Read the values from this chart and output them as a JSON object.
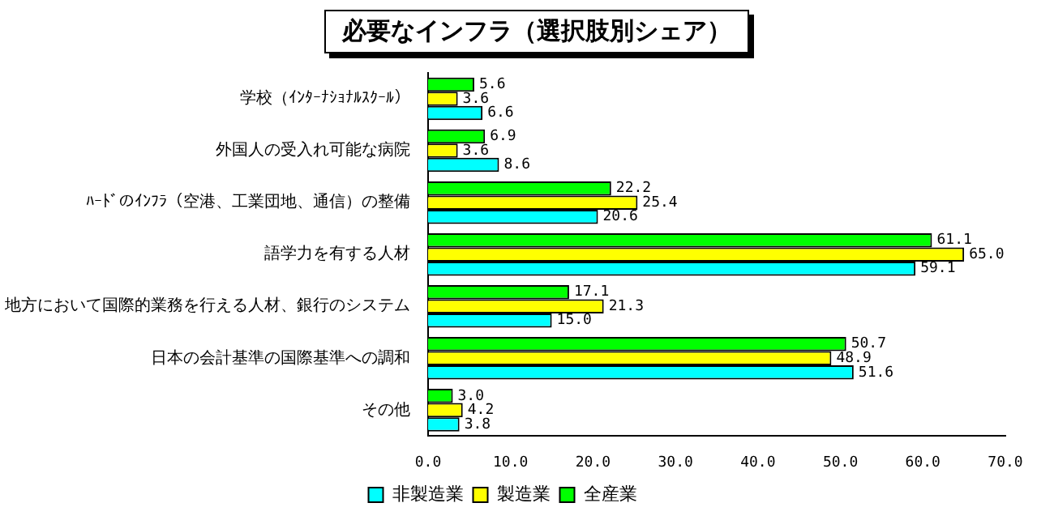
{
  "chart_data": {
    "type": "bar",
    "orientation": "horizontal",
    "title": "必要なインフラ（選択肢別シェア）",
    "categories": [
      "学校（ｲﾝﾀｰﾅｼｮﾅﾙｽｸｰﾙ）",
      "外国人の受入れ可能な病院",
      "ﾊｰﾄﾞのｲﾝﾌﾗ（空港、工業団地、通信）の整備",
      "語学力を有する人材",
      "地方において国際的業務を行える人材、銀行のシステム",
      "日本の会計基準の国際基準への調和",
      "その他"
    ],
    "series": [
      {
        "name": "全産業",
        "color": "#00ff00",
        "values": [
          5.6,
          6.9,
          22.2,
          61.1,
          17.1,
          50.7,
          3.0
        ],
        "value_labels": [
          "5.6",
          "6.9",
          "22.2",
          "61.1",
          "17.1",
          "50.7",
          "3.0"
        ]
      },
      {
        "name": "製造業",
        "color": "#ffff00",
        "values": [
          3.6,
          3.6,
          25.4,
          65.0,
          21.3,
          48.9,
          4.2
        ],
        "value_labels": [
          "3.6",
          "3.6",
          "25.4",
          "65.0",
          "21.3",
          "48.9",
          "4.2"
        ]
      },
      {
        "name": "非製造業",
        "color": "#00ffff",
        "values": [
          6.6,
          8.6,
          20.6,
          59.1,
          15.0,
          51.6,
          3.8
        ],
        "value_labels": [
          "6.6",
          "8.6",
          "20.6",
          "59.1",
          "15.0",
          "51.6",
          "3.8"
        ]
      }
    ],
    "xlim": [
      0,
      70
    ],
    "xticks": [
      {
        "value": 0,
        "label": "0.0"
      },
      {
        "value": 10,
        "label": "10.0"
      },
      {
        "value": 20,
        "label": "20.0"
      },
      {
        "value": 30,
        "label": "30.0"
      },
      {
        "value": 40,
        "label": "40.0"
      },
      {
        "value": 50,
        "label": "50.0"
      },
      {
        "value": 60,
        "label": "60.0"
      },
      {
        "value": 70,
        "label": "70.0"
      }
    ],
    "grid": false,
    "legend": "bottom"
  }
}
